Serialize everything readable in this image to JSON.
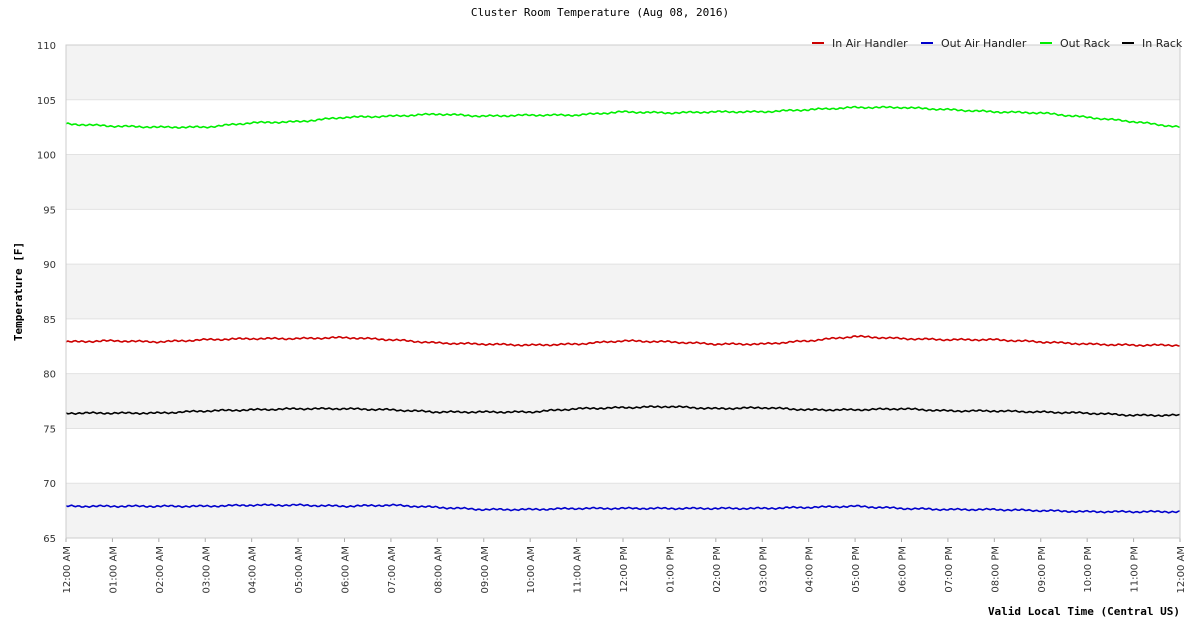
{
  "chart_data": {
    "type": "line",
    "title": "Cluster Room Temperature (Aug 08, 2016)",
    "xlabel": "Valid Local Time (Central US)",
    "ylabel": "Temperature [F]",
    "ylim": [
      65,
      110
    ],
    "yticks": [
      65,
      70,
      75,
      80,
      85,
      90,
      95,
      100,
      105,
      110
    ],
    "x_hours": [
      0,
      1,
      2,
      3,
      4,
      5,
      6,
      7,
      8,
      9,
      10,
      11,
      12,
      13,
      14,
      15,
      16,
      17,
      18,
      19,
      20,
      21,
      22,
      23,
      24
    ],
    "xtick_labels": [
      "12:00 AM",
      "01:00 AM",
      "02:00 AM",
      "03:00 AM",
      "04:00 AM",
      "05:00 AM",
      "06:00 AM",
      "07:00 AM",
      "08:00 AM",
      "09:00 AM",
      "10:00 AM",
      "11:00 AM",
      "12:00 PM",
      "01:00 PM",
      "02:00 PM",
      "03:00 PM",
      "04:00 PM",
      "05:00 PM",
      "06:00 PM",
      "07:00 PM",
      "08:00 PM",
      "09:00 PM",
      "10:00 PM",
      "11:00 PM",
      "12:00 AM"
    ],
    "legend_position": "top-right",
    "series": [
      {
        "name": "In Air Handler",
        "color": "#cc0000",
        "values": [
          82.9,
          83.0,
          82.9,
          83.1,
          83.2,
          83.2,
          83.3,
          83.1,
          82.8,
          82.7,
          82.6,
          82.7,
          83.0,
          82.9,
          82.7,
          82.7,
          83.0,
          83.4,
          83.2,
          83.1,
          83.1,
          82.9,
          82.7,
          82.6,
          82.6
        ]
      },
      {
        "name": "Out Air Handler",
        "color": "#0000cc",
        "values": [
          67.9,
          67.9,
          67.9,
          67.9,
          68.0,
          68.0,
          67.9,
          68.0,
          67.8,
          67.6,
          67.6,
          67.7,
          67.7,
          67.7,
          67.7,
          67.7,
          67.8,
          67.9,
          67.7,
          67.6,
          67.6,
          67.5,
          67.4,
          67.4,
          67.4
        ]
      },
      {
        "name": "Out Rack",
        "color": "#00ee00",
        "values": [
          102.8,
          102.6,
          102.5,
          102.5,
          102.9,
          103.0,
          103.4,
          103.5,
          103.7,
          103.5,
          103.6,
          103.6,
          103.9,
          103.8,
          103.9,
          103.9,
          104.1,
          104.3,
          104.3,
          104.1,
          103.9,
          103.8,
          103.4,
          103.0,
          102.5
        ]
      },
      {
        "name": "In Rack",
        "color": "#000000",
        "values": [
          76.4,
          76.4,
          76.4,
          76.6,
          76.7,
          76.8,
          76.8,
          76.7,
          76.5,
          76.5,
          76.5,
          76.8,
          76.9,
          77.0,
          76.8,
          76.9,
          76.7,
          76.7,
          76.8,
          76.6,
          76.6,
          76.5,
          76.4,
          76.2,
          76.2
        ]
      }
    ]
  }
}
